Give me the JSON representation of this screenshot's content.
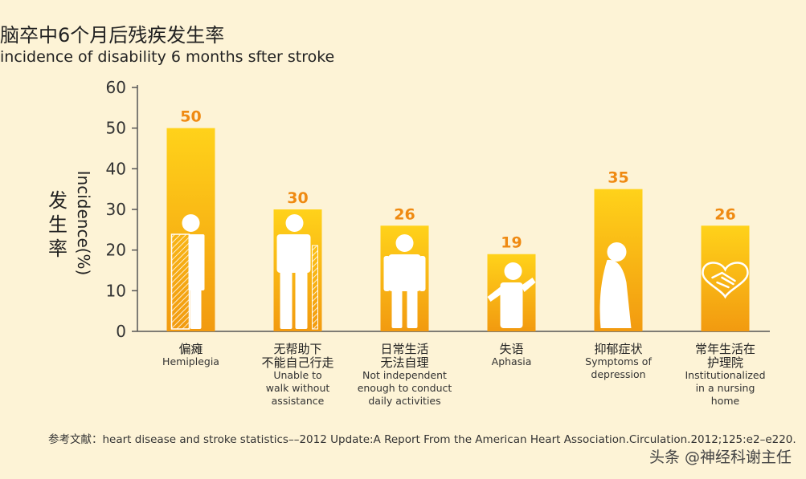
{
  "title_zh": "脑卒中6个月后残疾发生率",
  "title_en": "incidence of disability 6 months sfter stroke",
  "ylabel_zh": "发生率",
  "ylabel_en": "Incidence(%)",
  "reference": "参考文献：heart disease and stroke statistics––2012 Update:A Report From the American Heart Association.Circulation.2012;125:e2–e220.",
  "watermark": "头条 @神经科谢主任",
  "colors": {
    "background": "#fdf3d6",
    "bar_top": "#ffd21a",
    "bar_bottom": "#f29a10",
    "value_label": "#ef8a12",
    "axis": "#555555",
    "icon": "#ffffff"
  },
  "chart_data": {
    "type": "bar",
    "title": "脑卒中6个月后残疾发生率",
    "subtitle": "incidence of disability 6 months sfter stroke",
    "ylabel": "Incidence(%)",
    "ylim": [
      0,
      60
    ],
    "yticks": [
      0,
      10,
      20,
      30,
      40,
      50,
      60
    ],
    "grid": false,
    "categories": [
      {
        "zh": [
          "偏瘫"
        ],
        "en": [
          "Hemiplegia"
        ],
        "icon": "hemiplegia-figure-icon"
      },
      {
        "zh": [
          "无帮助下",
          "不能自己行走"
        ],
        "en": [
          "Unable to",
          "walk without",
          "assistance"
        ],
        "icon": "cane-walker-icon"
      },
      {
        "zh": [
          "日常生活",
          "无法自理"
        ],
        "en": [
          "Not independent",
          "enough to conduct",
          "daily activities"
        ],
        "icon": "standing-person-icon"
      },
      {
        "zh": [
          "失语"
        ],
        "en": [
          "Aphasia"
        ],
        "icon": "aphasia-person-icon"
      },
      {
        "zh": [
          "抑郁症状"
        ],
        "en": [
          "Symptoms of",
          "depression"
        ],
        "icon": "depressed-person-icon"
      },
      {
        "zh": [
          "常年生活在",
          "护理院"
        ],
        "en": [
          "Institutionalized",
          "in a nursing",
          "home"
        ],
        "icon": "heart-handshake-icon"
      }
    ],
    "values": [
      50,
      30,
      26,
      19,
      35,
      26
    ]
  }
}
